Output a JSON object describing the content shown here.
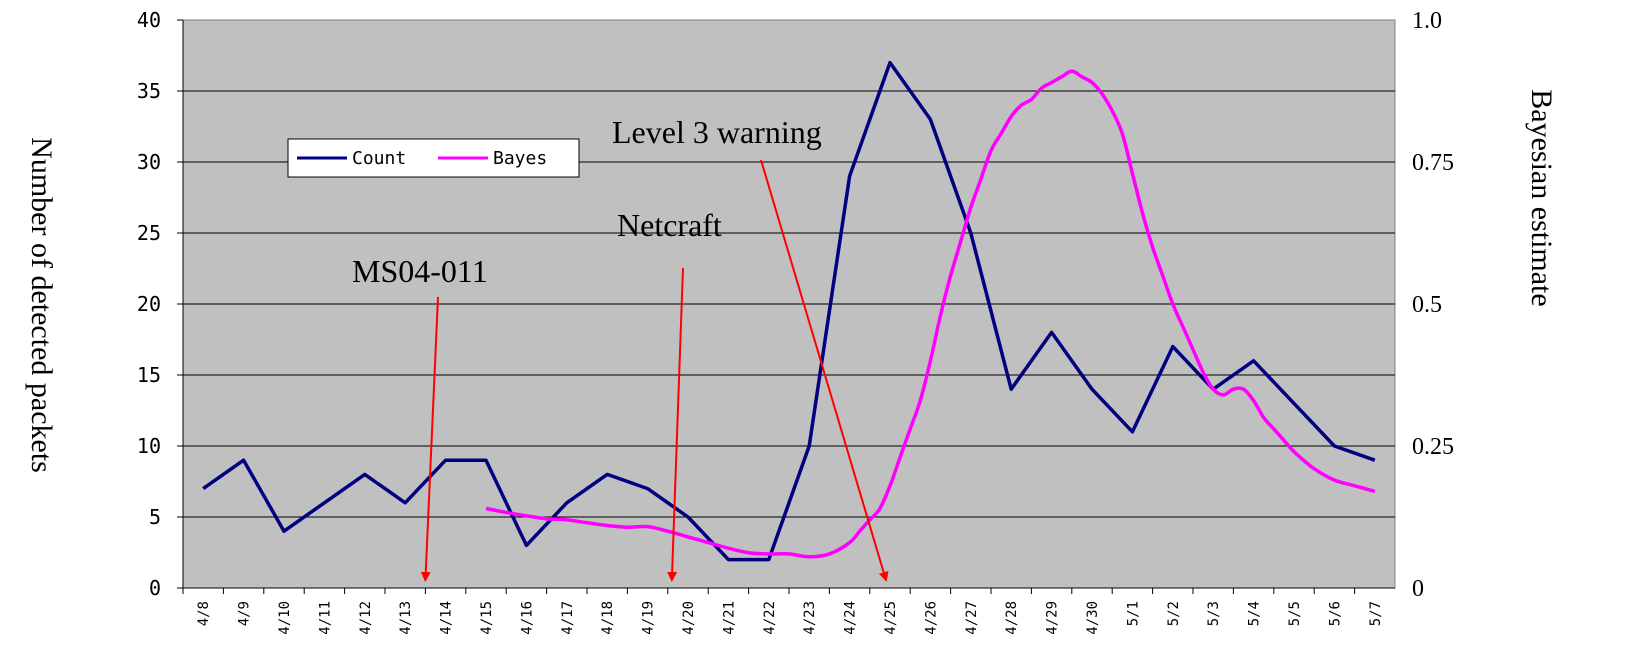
{
  "chart_data": {
    "type": "line",
    "categories": [
      "4/8",
      "4/9",
      "4/10",
      "4/11",
      "4/12",
      "4/13",
      "4/14",
      "4/15",
      "4/16",
      "4/17",
      "4/18",
      "4/19",
      "4/20",
      "4/21",
      "4/22",
      "4/23",
      "4/24",
      "4/25",
      "4/26",
      "4/27",
      "4/28",
      "4/29",
      "4/30",
      "5/1",
      "5/2",
      "5/3",
      "5/4",
      "5/5",
      "5/6",
      "5/7"
    ],
    "ylabel": "Number of detected packets",
    "y2label": "Bayesian estimate",
    "ylim": [
      0,
      40
    ],
    "y2lim": [
      0,
      1.0
    ],
    "yticks": [
      "0",
      "5",
      "10",
      "15",
      "20",
      "25",
      "30",
      "35",
      "40"
    ],
    "y2ticks": [
      "0",
      "0.25",
      "0.5",
      "0.75",
      "1.0"
    ],
    "grid": true,
    "background": "#c0c0c0",
    "legend_position": "upper-left",
    "series": [
      {
        "name": "Count",
        "axis": "left",
        "color": "#000080",
        "values": [
          7,
          9,
          4,
          6,
          8,
          6,
          9,
          9,
          3,
          6,
          8,
          7,
          5,
          2,
          2,
          10,
          29,
          37,
          33,
          25,
          14,
          18,
          14,
          11,
          17,
          14,
          16,
          13,
          10,
          9
        ]
      },
      {
        "name": "Bayes",
        "axis": "right",
        "color": "#ff00ff",
        "smooth": true,
        "x": [
          7,
          7.5,
          8,
          8.5,
          9,
          9.5,
          10,
          10.5,
          11,
          11.5,
          12,
          12.5,
          13,
          13.5,
          14,
          14.5,
          15,
          15.5,
          16,
          16.25,
          16.5,
          16.75,
          17,
          17.25,
          17.5,
          17.75,
          18,
          18.25,
          18.5,
          18.75,
          19,
          19.25,
          19.5,
          19.75,
          20,
          20.25,
          20.5,
          20.75,
          21,
          21.25,
          21.5,
          21.75,
          22,
          22.25,
          22.5,
          22.75,
          23,
          23.25,
          23.5,
          23.75,
          24,
          24.25,
          24.5,
          24.75,
          25,
          25.25,
          25.5,
          25.75,
          26,
          26.25,
          26.5,
          26.75,
          27,
          27.5,
          28,
          28.5,
          29
        ],
        "values": [
          0.14,
          0.133,
          0.127,
          0.122,
          0.12,
          0.115,
          0.11,
          0.107,
          0.108,
          0.1,
          0.09,
          0.08,
          0.07,
          0.062,
          0.06,
          0.06,
          0.055,
          0.06,
          0.08,
          0.1,
          0.12,
          0.14,
          0.18,
          0.23,
          0.28,
          0.33,
          0.4,
          0.48,
          0.55,
          0.61,
          0.67,
          0.72,
          0.77,
          0.8,
          0.83,
          0.85,
          0.86,
          0.88,
          0.89,
          0.9,
          0.91,
          0.9,
          0.89,
          0.87,
          0.84,
          0.8,
          0.73,
          0.66,
          0.6,
          0.55,
          0.5,
          0.46,
          0.42,
          0.38,
          0.35,
          0.34,
          0.35,
          0.35,
          0.33,
          0.3,
          0.28,
          0.26,
          0.24,
          0.21,
          0.19,
          0.18,
          0.17
        ]
      }
    ],
    "annotations": [
      {
        "text": "MS04-011",
        "target_x": 5.5
      },
      {
        "text": "Netcraft",
        "target_x": 11.6
      },
      {
        "text": "Level 3 warning",
        "target_x": 16.9
      }
    ]
  }
}
